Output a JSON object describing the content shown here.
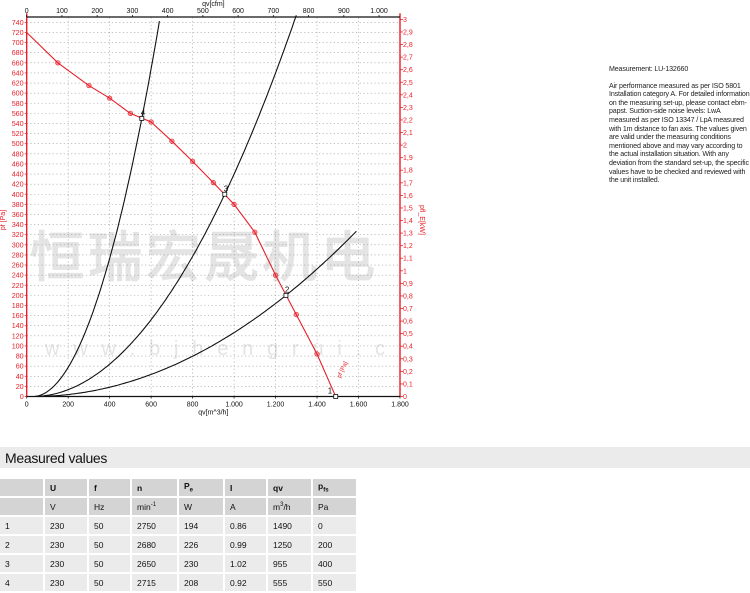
{
  "chart_data": {
    "type": "line",
    "x_axis": {
      "label": "qv[m^3/h]",
      "range": [
        0,
        1800
      ],
      "ticks": [
        "0",
        "200",
        "400",
        "600",
        "800",
        "1.000",
        "1.200",
        "1.400",
        "1.600",
        "1.800"
      ],
      "tick_values": [
        0,
        200,
        400,
        600,
        800,
        1000,
        1200,
        1400,
        1600,
        1800
      ]
    },
    "x2_axis": {
      "label": "qv[cfm]",
      "range": [
        0,
        1059
      ],
      "ticks": [
        "0",
        "100",
        "200",
        "300",
        "400",
        "500",
        "600",
        "700",
        "800",
        "900",
        "1.000"
      ],
      "tick_values": [
        0,
        100,
        200,
        300,
        400,
        500,
        600,
        700,
        800,
        900,
        1000
      ]
    },
    "y_axis": {
      "label": "pf [Pa]",
      "range": [
        0,
        750
      ],
      "tick_step": 20,
      "tick_max": 740,
      "color": "#e8202a"
    },
    "y2_axis": {
      "label": "pfl_E[kW]",
      "range": [
        0,
        3
      ],
      "tick_step": 0.1,
      "tick_max": 3,
      "color": "#e8202a"
    },
    "grid": true,
    "series": [
      {
        "name": "pf [Pa]",
        "color": "#e8202a",
        "markers": "circle",
        "x": [
          0,
          150,
          300,
          400,
          500,
          600,
          700,
          800,
          900,
          1000,
          1100,
          1200,
          1300,
          1400,
          1490
        ],
        "y": [
          720,
          660,
          615,
          590,
          560,
          543,
          505,
          465,
          423,
          380,
          325,
          240,
          162,
          84,
          0
        ]
      },
      {
        "name": "",
        "color": "#111111",
        "kind": "system-curve",
        "through": [
          555,
          550
        ],
        "x_end": 645
      },
      {
        "name": "",
        "color": "#111111",
        "kind": "system-curve",
        "through": [
          955,
          400
        ],
        "x_end": 1305
      },
      {
        "name": "",
        "color": "#111111",
        "kind": "system-curve",
        "through": [
          1250,
          200
        ],
        "x_end": 1590
      }
    ],
    "operating_points": [
      {
        "label": "1",
        "x": 1490,
        "y": 0
      },
      {
        "label": "2",
        "x": 1250,
        "y": 200
      },
      {
        "label": "3",
        "x": 955,
        "y": 400
      },
      {
        "label": "4",
        "x": 555,
        "y": 550
      }
    ],
    "watermark": {
      "line1": "恒瑞宏晟机电",
      "line2": "w w w . b j h e n g r u i . c"
    }
  },
  "note": {
    "measurement": "Measurement: LU-132660",
    "text": "Air performance measured as per ISO 5801 Installation category A. For detailed information on the measuring set-up, please contact ebm-papst. Suction-side noise levels: LwA measured as per ISO 13347 / LpA measured with 1m distance to fan axis. The values given are valid under the measuring conditions mentioned above and may vary according to the actual installation situation. With any deviation from the standard set-up, the specific values have to be checked and reviewed with the unit installed."
  },
  "table": {
    "title": "Measured values",
    "headers": [
      {
        "m": ""
      },
      {
        "m": "U"
      },
      {
        "m": "f"
      },
      {
        "m": "n"
      },
      {
        "m": "P",
        "sub": "e"
      },
      {
        "m": "I"
      },
      {
        "m": "qv"
      },
      {
        "m": "p",
        "sub": "fs"
      }
    ],
    "units": [
      {
        "m": ""
      },
      {
        "m": "V"
      },
      {
        "m": "Hz"
      },
      {
        "m": "min",
        "sup": "-1"
      },
      {
        "m": "W"
      },
      {
        "m": "A"
      },
      {
        "m": "m",
        "sup": "3",
        "after": "/h"
      },
      {
        "m": "Pa"
      }
    ],
    "rows": [
      [
        "1",
        "230",
        "50",
        "2750",
        "194",
        "0.86",
        "1490",
        "0"
      ],
      [
        "2",
        "230",
        "50",
        "2680",
        "226",
        "0.99",
        "1250",
        "200"
      ],
      [
        "3",
        "230",
        "50",
        "2650",
        "230",
        "1.02",
        "955",
        "400"
      ],
      [
        "4",
        "230",
        "50",
        "2715",
        "208",
        "0.92",
        "555",
        "550"
      ]
    ]
  }
}
